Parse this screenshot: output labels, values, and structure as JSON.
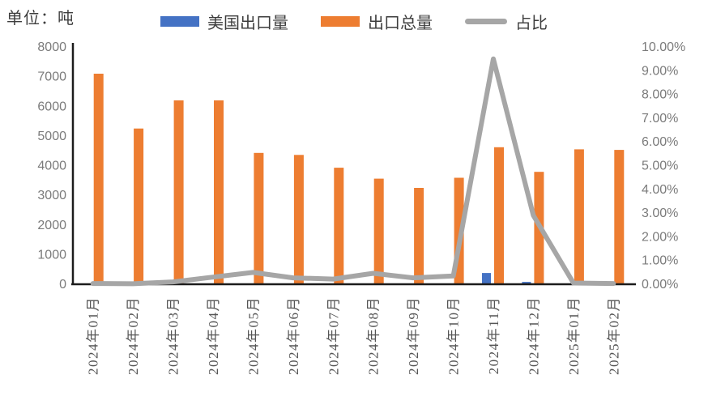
{
  "chart_data": {
    "type": "bar",
    "subtype": "combo-bar-line-dual-axis",
    "title": "",
    "unit_label": "单位：吨",
    "categories": [
      "2024年01月",
      "2024年02月",
      "2024年03月",
      "2024年04月",
      "2024年05月",
      "2024年06月",
      "2024年07月",
      "2024年08月",
      "2024年09月",
      "2024年10月",
      "2024年11月",
      "2024年12月",
      "2025年01月",
      "2025年02月"
    ],
    "series": [
      {
        "name": "美国出口量",
        "chart": "bar",
        "axis": "left",
        "color": "#4472C4",
        "values": [
          0,
          0,
          0,
          0,
          0,
          0,
          0,
          0,
          0,
          0,
          380,
          80,
          0,
          0
        ]
      },
      {
        "name": "出口总量",
        "chart": "bar",
        "axis": "left",
        "color": "#ED7D31",
        "values": [
          7100,
          5250,
          6200,
          6200,
          4430,
          4360,
          3930,
          3560,
          3250,
          3590,
          4620,
          3790,
          4550,
          4530
        ]
      },
      {
        "name": "占比",
        "chart": "line",
        "axis": "right",
        "color": "#A6A6A6",
        "values": [
          0.03,
          0.02,
          0.1,
          0.3,
          0.5,
          0.27,
          0.22,
          0.46,
          0.27,
          0.35,
          9.5,
          2.9,
          0.05,
          0.03
        ]
      }
    ],
    "left_axis": {
      "min": 0,
      "max": 8000,
      "step": 1000,
      "tick_labels": [
        "0",
        "1000",
        "2000",
        "3000",
        "4000",
        "5000",
        "6000",
        "7000",
        "8000"
      ]
    },
    "right_axis": {
      "min": 0,
      "max": 10,
      "step": 1,
      "tick_labels": [
        "0.00%",
        "1.00%",
        "2.00%",
        "3.00%",
        "4.00%",
        "5.00%",
        "6.00%",
        "7.00%",
        "8.00%",
        "9.00%",
        "10.00%"
      ]
    },
    "legend_position": "top",
    "grid": false
  },
  "colors": {
    "axis_line": "#1c1c1c",
    "tick_text": "#7b7b7b",
    "cjk_text": "#3d3d3d"
  }
}
